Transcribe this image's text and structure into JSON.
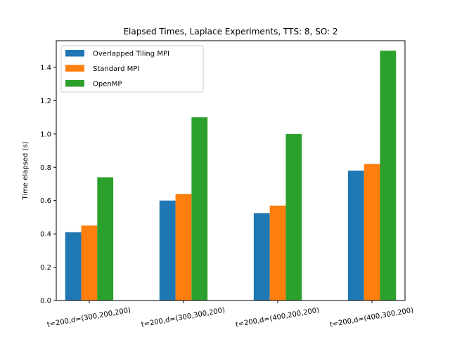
{
  "chart_data": {
    "type": "bar",
    "title": "Elapsed Times, Laplace Experiments, TTS: 8, SO: 2",
    "xlabel": "",
    "ylabel": "Time elapsed (s)",
    "ylim": [
      0,
      1.56
    ],
    "yticks": [
      "0.0",
      "0.2",
      "0.4",
      "0.6",
      "0.8",
      "1.0",
      "1.2",
      "1.4"
    ],
    "categories": [
      "t=200,d=(300,200,200)",
      "t=200,d=(300,300,200)",
      "t=200,d=(400,200,200)",
      "t=200,d=(400,300,200)"
    ],
    "series": [
      {
        "name": "Overlapped Tiling MPI",
        "color": "#1f77b4",
        "values": [
          0.41,
          0.6,
          0.525,
          0.78
        ]
      },
      {
        "name": "Standard MPI",
        "color": "#ff7f0e",
        "values": [
          0.45,
          0.64,
          0.57,
          0.82
        ]
      },
      {
        "name": "OpenMP",
        "color": "#2ca02c",
        "values": [
          0.74,
          1.1,
          1.0,
          1.5
        ]
      }
    ],
    "legend_position": "top-left",
    "grid": false
  }
}
